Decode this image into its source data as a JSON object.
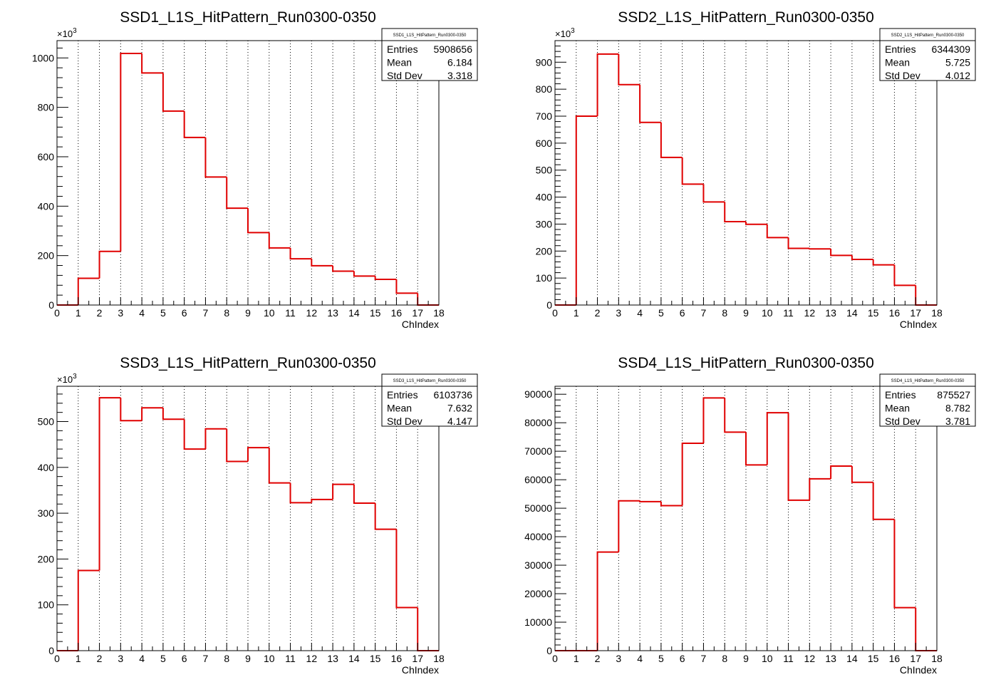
{
  "chart_data": [
    {
      "type": "bar",
      "title": "SSD1_L1S_HitPattern_Run0300-0350",
      "xlabel": "ChIndex",
      "ylabel": "",
      "y_exponent_label": "×10",
      "y_exponent_power": "3",
      "y_scale": 1000,
      "xlim": [
        0,
        18
      ],
      "ylim": [
        0,
        1070000
      ],
      "yticks": [
        0,
        200,
        400,
        600,
        800,
        1000
      ],
      "xticks": [
        "0",
        "1",
        "2",
        "3",
        "4",
        "5",
        "6",
        "7",
        "8",
        "9",
        "10",
        "11",
        "12",
        "13",
        "14",
        "15",
        "16",
        "17",
        "18"
      ],
      "grid": "vertical-dotted",
      "bin_edges": [
        0,
        1,
        2,
        3,
        4,
        5,
        6,
        7,
        8,
        9,
        10,
        11,
        12,
        13,
        14,
        15,
        16,
        17,
        18
      ],
      "values": [
        0,
        108000,
        217000,
        1018000,
        939000,
        785000,
        678000,
        518000,
        392000,
        293000,
        231000,
        187000,
        159000,
        137000,
        117000,
        104000,
        48000,
        0
      ],
      "color": "#e00000",
      "stats": {
        "name": "SSD1_L1S_HitPattern_Run0300-0350",
        "rows": [
          {
            "label": "Entries",
            "value": "5908656"
          },
          {
            "label": "Mean",
            "value": "6.184"
          },
          {
            "label": "Std Dev",
            "value": "3.318"
          }
        ]
      }
    },
    {
      "type": "bar",
      "title": "SSD2_L1S_HitPattern_Run0300-0350",
      "xlabel": "ChIndex",
      "ylabel": "",
      "y_exponent_label": "×10",
      "y_exponent_power": "3",
      "y_scale": 1000,
      "xlim": [
        0,
        18
      ],
      "ylim": [
        0,
        980000
      ],
      "yticks": [
        0,
        100,
        200,
        300,
        400,
        500,
        600,
        700,
        800,
        900
      ],
      "xticks": [
        "0",
        "1",
        "2",
        "3",
        "4",
        "5",
        "6",
        "7",
        "8",
        "9",
        "10",
        "11",
        "12",
        "13",
        "14",
        "15",
        "16",
        "17",
        "18"
      ],
      "grid": "vertical-dotted",
      "bin_edges": [
        0,
        1,
        2,
        3,
        4,
        5,
        6,
        7,
        8,
        9,
        10,
        11,
        12,
        13,
        14,
        15,
        16,
        17,
        18
      ],
      "values": [
        0,
        700000,
        930000,
        817000,
        677000,
        547000,
        448000,
        382000,
        309000,
        299000,
        250000,
        210000,
        208000,
        184000,
        169000,
        149000,
        73000,
        0
      ],
      "color": "#e00000",
      "stats": {
        "name": "SSD2_L1S_HitPattern_Run0300-0350",
        "rows": [
          {
            "label": "Entries",
            "value": "6344309"
          },
          {
            "label": "Mean",
            "value": "5.725"
          },
          {
            "label": "Std Dev",
            "value": "4.012"
          }
        ]
      }
    },
    {
      "type": "bar",
      "title": "SSD3_L1S_HitPattern_Run0300-0350",
      "xlabel": "ChIndex",
      "ylabel": "",
      "y_exponent_label": "×10",
      "y_exponent_power": "3",
      "y_scale": 1000,
      "xlim": [
        0,
        18
      ],
      "ylim": [
        0,
        577000
      ],
      "yticks": [
        0,
        100,
        200,
        300,
        400,
        500
      ],
      "xticks": [
        "0",
        "1",
        "2",
        "3",
        "4",
        "5",
        "6",
        "7",
        "8",
        "9",
        "10",
        "11",
        "12",
        "13",
        "14",
        "15",
        "16",
        "17",
        "18"
      ],
      "grid": "vertical-dotted",
      "bin_edges": [
        0,
        1,
        2,
        3,
        4,
        5,
        6,
        7,
        8,
        9,
        10,
        11,
        12,
        13,
        14,
        15,
        16,
        17,
        18
      ],
      "values": [
        0,
        175000,
        552000,
        502000,
        530000,
        505000,
        440000,
        484000,
        413000,
        443000,
        366000,
        323000,
        330000,
        363000,
        322000,
        265000,
        94000,
        0
      ],
      "color": "#e00000",
      "stats": {
        "name": "SSD3_L1S_HitPattern_Run0300-0350",
        "rows": [
          {
            "label": "Entries",
            "value": "6103736"
          },
          {
            "label": "Mean",
            "value": "7.632"
          },
          {
            "label": "Std Dev",
            "value": "4.147"
          }
        ]
      }
    },
    {
      "type": "bar",
      "title": "SSD4_L1S_HitPattern_Run0300-0350",
      "xlabel": "ChIndex",
      "ylabel": "",
      "y_exponent_label": "",
      "y_exponent_power": "",
      "y_scale": 1,
      "xlim": [
        0,
        18
      ],
      "ylim": [
        0,
        92800
      ],
      "yticks": [
        0,
        10000,
        20000,
        30000,
        40000,
        50000,
        60000,
        70000,
        80000,
        90000
      ],
      "xticks": [
        "0",
        "1",
        "2",
        "3",
        "4",
        "5",
        "6",
        "7",
        "8",
        "9",
        "10",
        "11",
        "12",
        "13",
        "14",
        "15",
        "16",
        "17",
        "18"
      ],
      "grid": "vertical-dotted",
      "bin_edges": [
        0,
        1,
        2,
        3,
        4,
        5,
        6,
        7,
        8,
        9,
        10,
        11,
        12,
        13,
        14,
        15,
        16,
        17,
        18
      ],
      "values": [
        0,
        0,
        34600,
        52600,
        52300,
        50900,
        72800,
        88700,
        76700,
        65200,
        83500,
        52800,
        60300,
        64800,
        59100,
        46100,
        15100,
        0
      ],
      "color": "#e00000",
      "stats": {
        "name": "SSD4_L1S_HitPattern_Run0300-0350",
        "rows": [
          {
            "label": "Entries",
            "value": "875527"
          },
          {
            "label": "Mean",
            "value": "8.782"
          },
          {
            "label": "Std Dev",
            "value": "3.781"
          }
        ]
      }
    }
  ]
}
